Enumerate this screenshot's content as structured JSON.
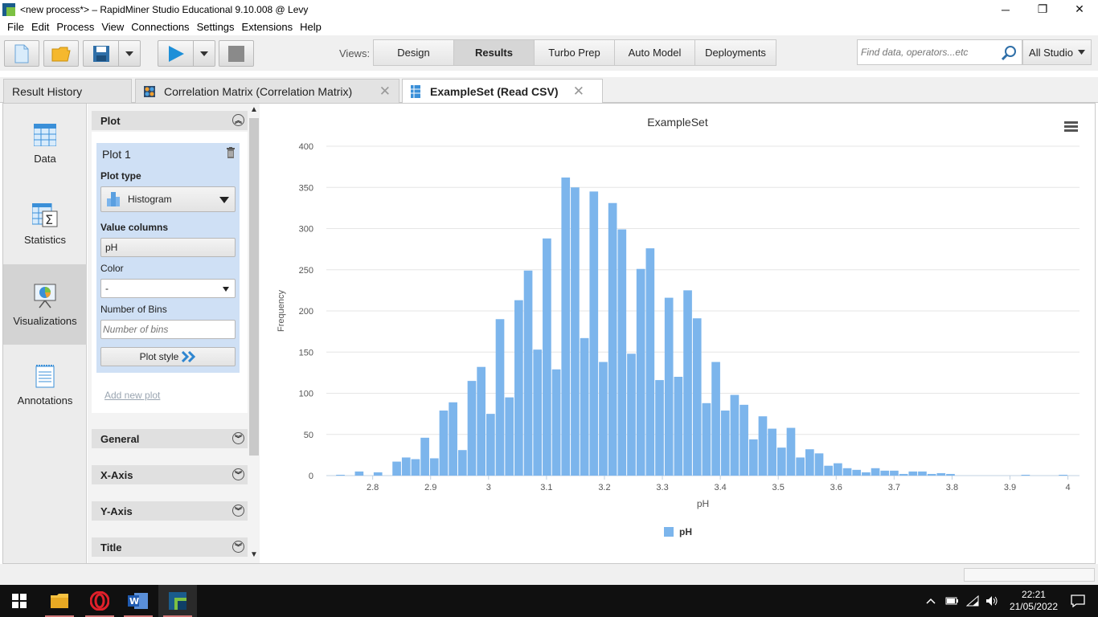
{
  "window": {
    "title": "<new process*> – RapidMiner Studio Educational 9.10.008 @ Levy",
    "controls": {
      "minimize": "─",
      "maximize": "❐",
      "close": "✕"
    }
  },
  "menubar": [
    "File",
    "Edit",
    "Process",
    "View",
    "Connections",
    "Settings",
    "Extensions",
    "Help"
  ],
  "toolbar": {
    "views_label": "Views:",
    "views": [
      "Design",
      "Results",
      "Turbo Prep",
      "Auto Model",
      "Deployments"
    ],
    "active_view": "Results",
    "search_placeholder": "Find data, operators...etc",
    "scope": "All Studio"
  },
  "tabs": [
    {
      "label": "Result History"
    },
    {
      "label": "Correlation Matrix (Correlation Matrix)",
      "close": "✕"
    },
    {
      "label": "ExampleSet (Read CSV)",
      "close": "✕"
    }
  ],
  "leftnav": [
    "Data",
    "Statistics",
    "Visualizations",
    "Annotations"
  ],
  "panel": {
    "plot_header": "Plot",
    "plot_name": "Plot 1",
    "plot_type_label": "Plot type",
    "plot_type_value": "Histogram",
    "value_columns_label": "Value columns",
    "value_columns_value": "pH",
    "color_label": "Color",
    "color_value": "-",
    "bins_label": "Number of Bins",
    "bins_placeholder": "Number of bins",
    "plot_style_label": "Plot style",
    "add_plot_label": "Add new plot",
    "sections": [
      "General",
      "X-Axis",
      "Y-Axis",
      "Title"
    ]
  },
  "chart_data": {
    "type": "bar",
    "title": "ExampleSet",
    "xlabel": "pH",
    "ylabel": "Frequency",
    "xlim": [
      2.72,
      4.02
    ],
    "ylim": [
      0,
      400
    ],
    "yticks": [
      0,
      50,
      100,
      150,
      200,
      250,
      300,
      350,
      400
    ],
    "xticks": [
      2.8,
      2.9,
      3,
      3.1,
      3.2,
      3.3,
      3.4,
      3.5,
      3.6,
      3.7,
      3.8,
      3.9,
      4
    ],
    "bin_width": 0.0162,
    "series": [
      {
        "name": "pH",
        "color": "#7cb5ec",
        "bins_start": [
          2.72,
          2.7362,
          2.7524,
          2.7686,
          2.7848,
          2.801,
          2.8172,
          2.8334,
          2.8496,
          2.8658,
          2.882,
          2.8982,
          2.9144,
          2.9306,
          2.9468,
          2.963,
          2.9792,
          2.9954,
          3.0116,
          3.0278,
          3.044,
          3.0602,
          3.0764,
          3.0926,
          3.1088,
          3.125,
          3.1412,
          3.1574,
          3.1736,
          3.1898,
          3.206,
          3.2222,
          3.2384,
          3.2546,
          3.2708,
          3.287,
          3.3032,
          3.3194,
          3.3356,
          3.3518,
          3.368,
          3.3842,
          3.4004,
          3.4166,
          3.4328,
          3.449,
          3.4652,
          3.4814,
          3.4976,
          3.5138,
          3.53,
          3.5462,
          3.5624,
          3.5786,
          3.5948,
          3.611,
          3.6272,
          3.6434,
          3.6596,
          3.6758,
          3.692,
          3.7082,
          3.7244,
          3.7406,
          3.7568,
          3.773,
          3.7892,
          3.8054,
          3.8216,
          3.8378,
          3.854,
          3.8702,
          3.8864,
          3.9026,
          3.9188,
          3.935,
          3.9512,
          3.9674,
          3.9836
        ],
        "values": [
          0,
          1,
          0,
          5,
          0,
          4,
          0,
          17,
          22,
          20,
          46,
          21,
          79,
          89,
          31,
          115,
          132,
          75,
          190,
          95,
          213,
          249,
          153,
          288,
          129,
          362,
          350,
          167,
          345,
          138,
          331,
          299,
          148,
          251,
          276,
          116,
          216,
          120,
          225,
          191,
          88,
          138,
          79,
          98,
          86,
          44,
          72,
          57,
          34,
          58,
          22,
          32,
          27,
          12,
          15,
          9,
          7,
          4,
          9,
          6,
          6,
          2,
          5,
          5,
          2,
          3,
          2,
          0,
          0,
          0,
          0,
          0,
          0,
          0,
          1,
          0,
          0,
          0,
          1
        ]
      }
    ]
  },
  "taskbar": {
    "clock_time": "22:21",
    "clock_date": "21/05/2022"
  }
}
